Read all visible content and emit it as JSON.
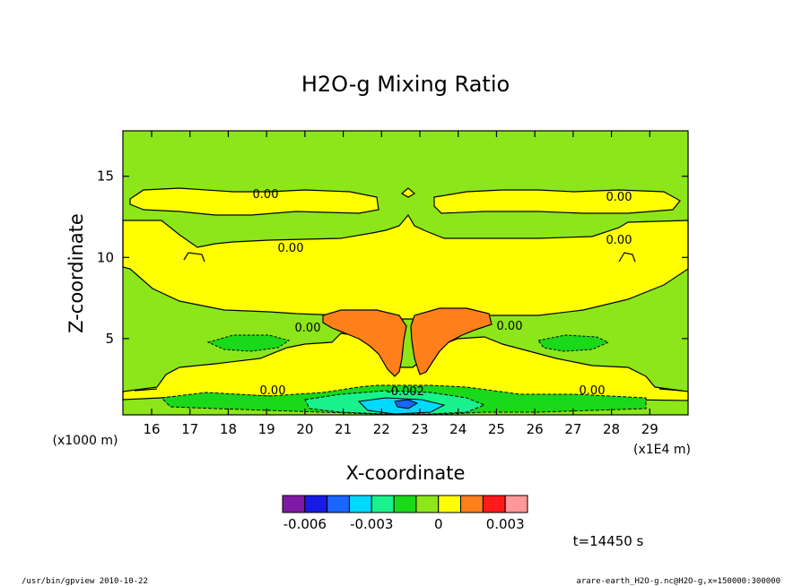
{
  "chart_data": {
    "type": "heatmap",
    "title": "H2O-g Mixing Ratio",
    "xlabel": "X-coordinate",
    "ylabel": "Z-coordinate",
    "x_unit": "(x1E4 m)",
    "y_unit": "(x1000 m)",
    "xlim": [
      15.25,
      30.0
    ],
    "ylim": [
      0.3,
      17.8
    ],
    "x_ticks": [
      16,
      17,
      18,
      19,
      20,
      21,
      22,
      23,
      24,
      25,
      26,
      27,
      28,
      29
    ],
    "y_ticks": [
      5,
      10,
      15
    ],
    "grid": false,
    "contour_labels": [
      "0.00",
      "0.00",
      "0.00",
      "0.00",
      "0.00",
      "0.00",
      "0.00",
      "0.00",
      "-0.002"
    ],
    "colorbar": {
      "colors": [
        "#7f1aa6",
        "#1a1ae6",
        "#1a66ff",
        "#00d9ff",
        "#19f28c",
        "#19d91a",
        "#8ce619",
        "#ffff00",
        "#ff801a",
        "#ff1a1a",
        "#ff9999"
      ],
      "tick_labels": [
        "-0.006",
        "-0.003",
        "0",
        "0.003"
      ],
      "tick_values": [
        -0.006,
        -0.003,
        0,
        0.003
      ]
    },
    "time_label": "t=14450 s"
  },
  "footer": {
    "left": "/usr/bin/gpview  2010-10-22",
    "right": "arare-earth_H2O-g.nc@H2O-g,x=150000:300000"
  }
}
